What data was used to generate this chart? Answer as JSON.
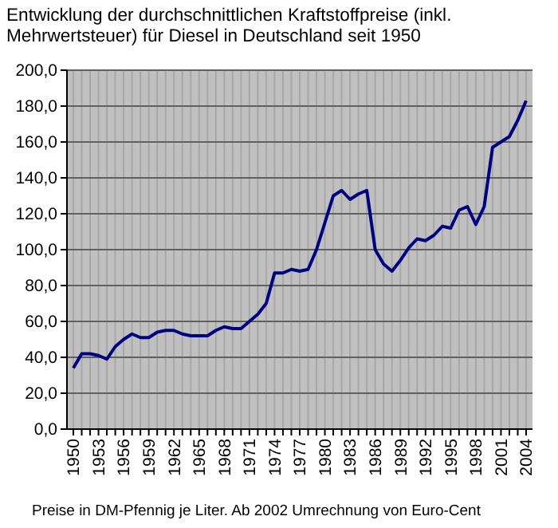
{
  "chart_data": {
    "type": "line",
    "title": "Entwicklung der durchschnittlichen Kraftstoffpreise (inkl. Mehrwertsteuer) für Diesel in Deutschland seit 1950",
    "categories": [
      "1950",
      null,
      null,
      "1953",
      null,
      null,
      "1956",
      null,
      null,
      "1959",
      null,
      null,
      "1962",
      null,
      null,
      "1965",
      null,
      null,
      "1968",
      null,
      null,
      "1971",
      null,
      null,
      "1974",
      null,
      null,
      "1977",
      null,
      null,
      "1980",
      null,
      null,
      "1983",
      null,
      null,
      "1986",
      null,
      null,
      "1989",
      null,
      null,
      "1992",
      null,
      null,
      "1995",
      null,
      null,
      "1998",
      null,
      null,
      "2001",
      null,
      null,
      "2004"
    ],
    "series": [
      {
        "color": "#000080",
        "values": [
          34,
          42,
          42,
          41,
          39,
          46,
          50,
          53,
          51,
          51,
          54,
          55,
          55,
          53,
          52,
          52,
          52,
          55,
          57,
          56,
          56,
          60,
          64,
          70,
          87,
          87,
          89,
          88,
          89,
          100,
          115,
          130,
          133,
          128,
          131,
          133,
          100,
          92,
          88,
          94,
          101,
          106,
          105,
          108,
          113,
          112,
          122,
          124,
          114,
          124,
          157,
          160,
          163,
          172,
          183
        ]
      }
    ],
    "ylim": [
      0,
      200
    ],
    "yticks": [
      {
        "value": 0,
        "label": "0,0"
      },
      {
        "value": 20,
        "label": "20,0"
      },
      {
        "value": 40,
        "label": "40,0"
      },
      {
        "value": 60,
        "label": "60,0"
      },
      {
        "value": 80,
        "label": "80,0"
      },
      {
        "value": 100,
        "label": "100,0"
      },
      {
        "value": 120,
        "label": "120,0"
      },
      {
        "value": 140,
        "label": "140,0"
      },
      {
        "value": 160,
        "label": "160,0"
      },
      {
        "value": 180,
        "label": "180,0"
      },
      {
        "value": 200,
        "label": "200,0"
      }
    ],
    "grid": true,
    "annotations": [
      "Preise in DM-Pfennig je Liter. Ab 2002 Umrechnung von Euro-Cent"
    ]
  }
}
